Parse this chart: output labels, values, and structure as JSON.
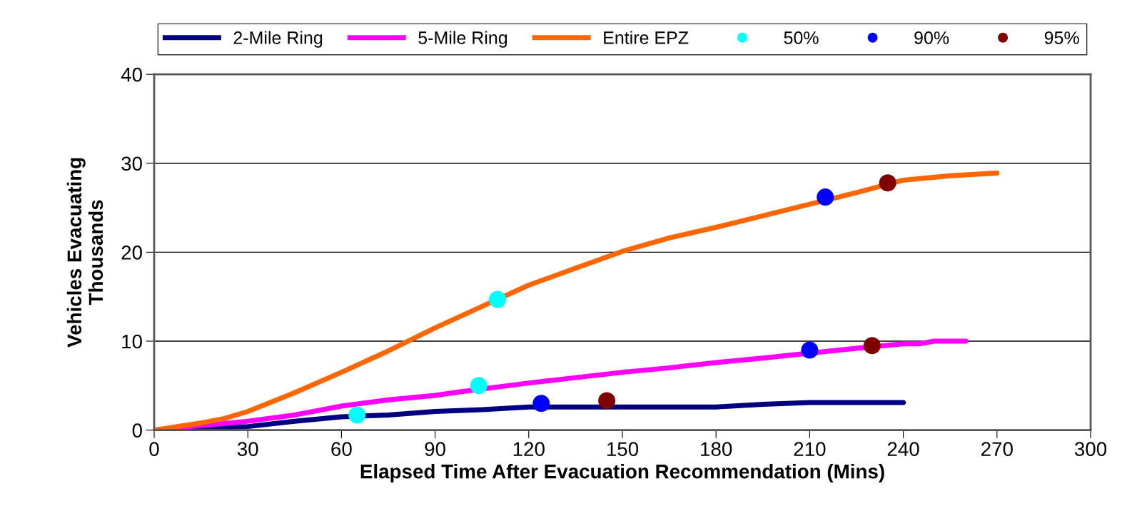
{
  "chart_data": {
    "type": "line",
    "xlabel": "Elapsed Time After Evacuation Recommendation (Mins)",
    "ylabel": "Vehicles Evacuating\nThousands",
    "xlim": [
      0,
      300
    ],
    "xticks": [
      0,
      30,
      60,
      90,
      120,
      150,
      180,
      210,
      240,
      270,
      300
    ],
    "ylim": [
      0,
      40
    ],
    "yticks": [
      0,
      10,
      20,
      30,
      40
    ],
    "grid": "y",
    "legend": "top",
    "marker": "none",
    "series": [
      {
        "name": "2-Mile Ring",
        "color": "#000080",
        "x": [
          0,
          15,
          30,
          45,
          60,
          75,
          90,
          105,
          120,
          135,
          150,
          165,
          180,
          195,
          210,
          225,
          240
        ],
        "values": [
          0,
          0.2,
          0.4,
          1.0,
          1.5,
          1.7,
          2.1,
          2.3,
          2.6,
          2.6,
          2.6,
          2.6,
          2.6,
          2.9,
          3.1,
          3.1,
          3.1
        ]
      },
      {
        "name": "5-Mile Ring",
        "color": "#ff00ff",
        "x": [
          0,
          15,
          30,
          45,
          60,
          75,
          90,
          98,
          120,
          135,
          150,
          165,
          180,
          195,
          203,
          225,
          240,
          245,
          250,
          260
        ],
        "values": [
          0,
          0.5,
          1.0,
          1.7,
          2.7,
          3.4,
          3.9,
          4.3,
          5.3,
          5.9,
          6.5,
          7.0,
          7.6,
          8.1,
          8.4,
          9.2,
          9.7,
          9.7,
          10.0,
          10.0
        ]
      },
      {
        "name": "Entire EPZ",
        "color": "#ff6600",
        "x": [
          0,
          15,
          22.5,
          30,
          45,
          60,
          75,
          90,
          105,
          120,
          135,
          150,
          165,
          180,
          195,
          210,
          225,
          240,
          255,
          270
        ],
        "values": [
          0,
          0.8,
          1.3,
          2.1,
          4.2,
          6.5,
          8.9,
          11.5,
          13.9,
          16.3,
          18.2,
          20.1,
          21.6,
          22.8,
          24.1,
          25.4,
          26.7,
          28.1,
          28.6,
          28.9
        ]
      },
      {
        "name": "50%",
        "type": "scatter",
        "marker": "circle",
        "color": "#00ffff",
        "x": [
          65,
          104,
          110
        ],
        "values": [
          1.7,
          5.0,
          14.7
        ]
      },
      {
        "name": "90%",
        "type": "scatter",
        "marker": "circle",
        "color": "#0000ff",
        "x": [
          124,
          210,
          215
        ],
        "values": [
          3.0,
          9.0,
          26.2
        ]
      },
      {
        "name": "95%",
        "type": "scatter",
        "marker": "circle",
        "color": "#800000",
        "x": [
          145,
          230,
          235
        ],
        "values": [
          3.3,
          9.5,
          27.8
        ]
      }
    ]
  }
}
